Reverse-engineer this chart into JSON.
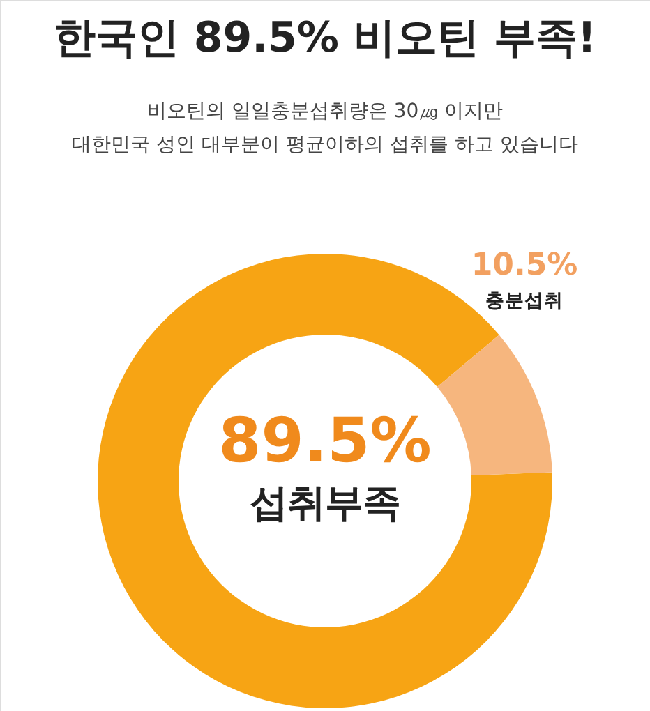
{
  "chart_data": {
    "type": "donut",
    "title": "한국인 89.5% 비오틴 부족!",
    "subtitle": "비오틴의 일일충분섭취량은 30㎍ 이지만\n대한민국 성인 대부분이 평균이하의 섭취를 하고 있습니다",
    "categories": [
      "섭취부족",
      "충분섭취"
    ],
    "values": [
      89.5,
      10.5
    ],
    "colors": [
      "#f7a414",
      "#f6b67e"
    ],
    "value_labels": [
      "89.5%",
      "10.5%"
    ]
  }
}
